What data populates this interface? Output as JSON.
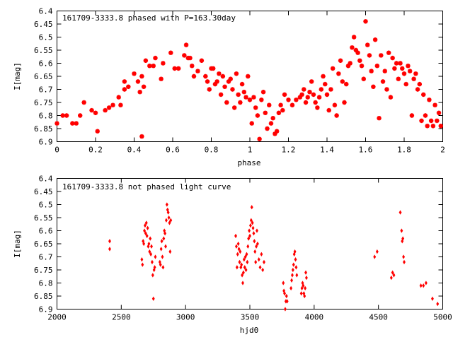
{
  "chart_data": [
    {
      "type": "scatter",
      "title": "161709-3333.8 phased with P=163.30day",
      "xlabel": "phase",
      "ylabel": "I[mag]",
      "xlim": [
        0,
        2
      ],
      "ylim": [
        6.4,
        6.9
      ],
      "y_inverted": true,
      "x_ticks": [
        "0",
        "0.2",
        "0.4",
        "0.6",
        "0.8",
        "1",
        "1.2",
        "1.4",
        "1.6",
        "1.8",
        "2"
      ],
      "y_ticks": [
        "6.4",
        "6.45",
        "6.5",
        "6.55",
        "6.6",
        "6.65",
        "6.7",
        "6.75",
        "6.8",
        "6.85",
        "6.9"
      ],
      "marker": "star",
      "color": "#ff0000",
      "grid": false,
      "points": [
        [
          0.0,
          6.83
        ],
        [
          0.03,
          6.8
        ],
        [
          0.05,
          6.8
        ],
        [
          0.08,
          6.83
        ],
        [
          0.1,
          6.83
        ],
        [
          0.12,
          6.8
        ],
        [
          0.14,
          6.75
        ],
        [
          0.18,
          6.78
        ],
        [
          0.2,
          6.79
        ],
        [
          0.21,
          6.86
        ],
        [
          0.25,
          6.78
        ],
        [
          0.27,
          6.77
        ],
        [
          0.29,
          6.76
        ],
        [
          0.32,
          6.73
        ],
        [
          0.33,
          6.76
        ],
        [
          0.35,
          6.7
        ],
        [
          0.35,
          6.67
        ],
        [
          0.37,
          6.69
        ],
        [
          0.4,
          6.64
        ],
        [
          0.42,
          6.67
        ],
        [
          0.43,
          6.71
        ],
        [
          0.44,
          6.65
        ],
        [
          0.45,
          6.69
        ],
        [
          0.46,
          6.59
        ],
        [
          0.48,
          6.61
        ],
        [
          0.44,
          6.88
        ],
        [
          0.5,
          6.61
        ],
        [
          0.51,
          6.58
        ],
        [
          0.54,
          6.66
        ],
        [
          0.55,
          6.6
        ],
        [
          0.59,
          6.56
        ],
        [
          0.61,
          6.62
        ],
        [
          0.63,
          6.62
        ],
        [
          0.66,
          6.57
        ],
        [
          0.67,
          6.53
        ],
        [
          0.68,
          6.58
        ],
        [
          0.69,
          6.58
        ],
        [
          0.7,
          6.61
        ],
        [
          0.71,
          6.65
        ],
        [
          0.73,
          6.63
        ],
        [
          0.75,
          6.59
        ],
        [
          0.77,
          6.65
        ],
        [
          0.78,
          6.67
        ],
        [
          0.79,
          6.7
        ],
        [
          0.8,
          6.62
        ],
        [
          0.81,
          6.62
        ],
        [
          0.82,
          6.68
        ],
        [
          0.83,
          6.67
        ],
        [
          0.84,
          6.64
        ],
        [
          0.85,
          6.72
        ],
        [
          0.86,
          6.65
        ],
        [
          0.87,
          6.69
        ],
        [
          0.88,
          6.75
        ],
        [
          0.89,
          6.67
        ],
        [
          0.9,
          6.66
        ],
        [
          0.91,
          6.7
        ],
        [
          0.92,
          6.77
        ],
        [
          0.93,
          6.64
        ],
        [
          0.94,
          6.72
        ],
        [
          0.95,
          6.75
        ],
        [
          0.96,
          6.68
        ],
        [
          0.97,
          6.71
        ],
        [
          0.98,
          6.73
        ],
        [
          0.99,
          6.65
        ],
        [
          1.0,
          6.74
        ],
        [
          1.01,
          6.83
        ],
        [
          1.02,
          6.73
        ],
        [
          1.03,
          6.77
        ],
        [
          1.04,
          6.8
        ],
        [
          1.05,
          6.89
        ],
        [
          1.06,
          6.74
        ],
        [
          1.07,
          6.71
        ],
        [
          1.08,
          6.79
        ],
        [
          1.09,
          6.85
        ],
        [
          1.1,
          6.76
        ],
        [
          1.11,
          6.83
        ],
        [
          1.12,
          6.81
        ],
        [
          1.13,
          6.87
        ],
        [
          1.14,
          6.86
        ],
        [
          1.15,
          6.79
        ],
        [
          1.16,
          6.76
        ],
        [
          1.17,
          6.78
        ],
        [
          1.18,
          6.72
        ],
        [
          1.2,
          6.74
        ],
        [
          1.22,
          6.76
        ],
        [
          1.24,
          6.74
        ],
        [
          1.26,
          6.73
        ],
        [
          1.27,
          6.72
        ],
        [
          1.28,
          6.7
        ],
        [
          1.29,
          6.75
        ],
        [
          1.3,
          6.73
        ],
        [
          1.31,
          6.71
        ],
        [
          1.32,
          6.67
        ],
        [
          1.33,
          6.72
        ],
        [
          1.34,
          6.75
        ],
        [
          1.35,
          6.77
        ],
        [
          1.36,
          6.73
        ],
        [
          1.37,
          6.7
        ],
        [
          1.38,
          6.65
        ],
        [
          1.39,
          6.68
        ],
        [
          1.4,
          6.72
        ],
        [
          1.41,
          6.78
        ],
        [
          1.42,
          6.7
        ],
        [
          1.43,
          6.62
        ],
        [
          1.44,
          6.76
        ],
        [
          1.45,
          6.8
        ],
        [
          1.46,
          6.64
        ],
        [
          1.47,
          6.59
        ],
        [
          1.48,
          6.67
        ],
        [
          1.49,
          6.75
        ],
        [
          1.5,
          6.68
        ],
        [
          1.51,
          6.61
        ],
        [
          1.52,
          6.6
        ],
        [
          1.53,
          6.54
        ],
        [
          1.54,
          6.5
        ],
        [
          1.55,
          6.55
        ],
        [
          1.56,
          6.56
        ],
        [
          1.57,
          6.59
        ],
        [
          1.58,
          6.61
        ],
        [
          1.59,
          6.66
        ],
        [
          1.6,
          6.44
        ],
        [
          1.61,
          6.53
        ],
        [
          1.62,
          6.57
        ],
        [
          1.63,
          6.63
        ],
        [
          1.64,
          6.69
        ],
        [
          1.65,
          6.51
        ],
        [
          1.66,
          6.61
        ],
        [
          1.67,
          6.81
        ],
        [
          1.68,
          6.57
        ],
        [
          1.69,
          6.67
        ],
        [
          1.7,
          6.63
        ],
        [
          1.71,
          6.7
        ],
        [
          1.72,
          6.56
        ],
        [
          1.73,
          6.73
        ],
        [
          1.74,
          6.58
        ],
        [
          1.75,
          6.62
        ],
        [
          1.76,
          6.6
        ],
        [
          1.77,
          6.66
        ],
        [
          1.78,
          6.6
        ],
        [
          1.79,
          6.62
        ],
        [
          1.8,
          6.64
        ],
        [
          1.81,
          6.68
        ],
        [
          1.82,
          6.61
        ],
        [
          1.83,
          6.63
        ],
        [
          1.84,
          6.8
        ],
        [
          1.85,
          6.66
        ],
        [
          1.86,
          6.64
        ],
        [
          1.87,
          6.7
        ],
        [
          1.88,
          6.68
        ],
        [
          1.89,
          6.82
        ],
        [
          1.9,
          6.72
        ],
        [
          1.91,
          6.8
        ],
        [
          1.92,
          6.84
        ],
        [
          1.93,
          6.74
        ],
        [
          1.94,
          6.82
        ],
        [
          1.95,
          6.84
        ],
        [
          1.96,
          6.76
        ],
        [
          1.97,
          6.82
        ],
        [
          1.98,
          6.79
        ],
        [
          1.99,
          6.84
        ]
      ]
    },
    {
      "type": "scatter",
      "title": "161709-3333.8 not phased light curve",
      "xlabel": "hjd0",
      "ylabel": "I[mag]",
      "xlim": [
        2000,
        5000
      ],
      "ylim": [
        6.4,
        6.9
      ],
      "y_inverted": true,
      "x_ticks": [
        "2000",
        "2500",
        "3000",
        "3500",
        "4000",
        "4500",
        "5000"
      ],
      "y_ticks": [
        "6.4",
        "6.45",
        "6.5",
        "6.55",
        "6.6",
        "6.65",
        "6.7",
        "6.75",
        "6.8",
        "6.85",
        "6.9"
      ],
      "marker": "diamond",
      "color": "#ff0000",
      "grid": false,
      "points": [
        [
          2410,
          6.64
        ],
        [
          2410,
          6.67
        ],
        [
          2660,
          6.71
        ],
        [
          2665,
          6.73
        ],
        [
          2670,
          6.64
        ],
        [
          2675,
          6.65
        ],
        [
          2680,
          6.6
        ],
        [
          2685,
          6.58
        ],
        [
          2690,
          6.61
        ],
        [
          2695,
          6.57
        ],
        [
          2700,
          6.62
        ],
        [
          2705,
          6.59
        ],
        [
          2710,
          6.66
        ],
        [
          2715,
          6.65
        ],
        [
          2720,
          6.68
        ],
        [
          2725,
          6.63
        ],
        [
          2730,
          6.69
        ],
        [
          2735,
          6.66
        ],
        [
          2740,
          6.72
        ],
        [
          2745,
          6.77
        ],
        [
          2750,
          6.86
        ],
        [
          2755,
          6.75
        ],
        [
          2760,
          6.74
        ],
        [
          2765,
          6.7
        ],
        [
          2800,
          6.72
        ],
        [
          2805,
          6.73
        ],
        [
          2810,
          6.67
        ],
        [
          2815,
          6.64
        ],
        [
          2820,
          6.7
        ],
        [
          2825,
          6.74
        ],
        [
          2830,
          6.63
        ],
        [
          2835,
          6.6
        ],
        [
          2840,
          6.61
        ],
        [
          2845,
          6.66
        ],
        [
          2850,
          6.56
        ],
        [
          2855,
          6.5
        ],
        [
          2860,
          6.52
        ],
        [
          2865,
          6.53
        ],
        [
          2870,
          6.55
        ],
        [
          2875,
          6.57
        ],
        [
          2880,
          6.68
        ],
        [
          2885,
          6.56
        ],
        [
          3390,
          6.62
        ],
        [
          3395,
          6.66
        ],
        [
          3400,
          6.74
        ],
        [
          3405,
          6.69
        ],
        [
          3410,
          6.65
        ],
        [
          3415,
          6.67
        ],
        [
          3420,
          6.72
        ],
        [
          3425,
          6.68
        ],
        [
          3430,
          6.74
        ],
        [
          3435,
          6.73
        ],
        [
          3440,
          6.77
        ],
        [
          3445,
          6.8
        ],
        [
          3450,
          6.76
        ],
        [
          3455,
          6.71
        ],
        [
          3460,
          6.74
        ],
        [
          3465,
          6.7
        ],
        [
          3470,
          6.75
        ],
        [
          3475,
          6.69
        ],
        [
          3480,
          6.72
        ],
        [
          3485,
          6.66
        ],
        [
          3490,
          6.63
        ],
        [
          3495,
          6.6
        ],
        [
          3500,
          6.62
        ],
        [
          3505,
          6.58
        ],
        [
          3510,
          6.56
        ],
        [
          3515,
          6.51
        ],
        [
          3520,
          6.57
        ],
        [
          3525,
          6.59
        ],
        [
          3530,
          6.61
        ],
        [
          3535,
          6.64
        ],
        [
          3540,
          6.68
        ],
        [
          3545,
          6.72
        ],
        [
          3550,
          6.66
        ],
        [
          3555,
          6.6
        ],
        [
          3560,
          6.65
        ],
        [
          3570,
          6.71
        ],
        [
          3580,
          6.74
        ],
        [
          3590,
          6.69
        ],
        [
          3600,
          6.75
        ],
        [
          3610,
          6.72
        ],
        [
          3760,
          6.8
        ],
        [
          3765,
          6.83
        ],
        [
          3770,
          6.84
        ],
        [
          3775,
          6.9
        ],
        [
          3780,
          6.87
        ],
        [
          3785,
          6.85
        ],
        [
          3790,
          6.87
        ],
        [
          3820,
          6.82
        ],
        [
          3825,
          6.79
        ],
        [
          3830,
          6.77
        ],
        [
          3835,
          6.75
        ],
        [
          3840,
          6.73
        ],
        [
          3845,
          6.69
        ],
        [
          3850,
          6.68
        ],
        [
          3855,
          6.71
        ],
        [
          3860,
          6.74
        ],
        [
          3865,
          6.77
        ],
        [
          3900,
          6.84
        ],
        [
          3905,
          6.82
        ],
        [
          3910,
          6.8
        ],
        [
          3915,
          6.81
        ],
        [
          3920,
          6.84
        ],
        [
          3925,
          6.85
        ],
        [
          3930,
          6.82
        ],
        [
          3935,
          6.76
        ],
        [
          3940,
          6.78
        ],
        [
          4470,
          6.7
        ],
        [
          4490,
          6.68
        ],
        [
          4600,
          6.78
        ],
        [
          4610,
          6.76
        ],
        [
          4620,
          6.77
        ],
        [
          4670,
          6.53
        ],
        [
          4680,
          6.6
        ],
        [
          4685,
          6.64
        ],
        [
          4690,
          6.63
        ],
        [
          4695,
          6.7
        ],
        [
          4700,
          6.72
        ],
        [
          4830,
          6.81
        ],
        [
          4850,
          6.81
        ],
        [
          4870,
          6.8
        ],
        [
          4920,
          6.86
        ],
        [
          4960,
          6.88
        ]
      ]
    }
  ]
}
